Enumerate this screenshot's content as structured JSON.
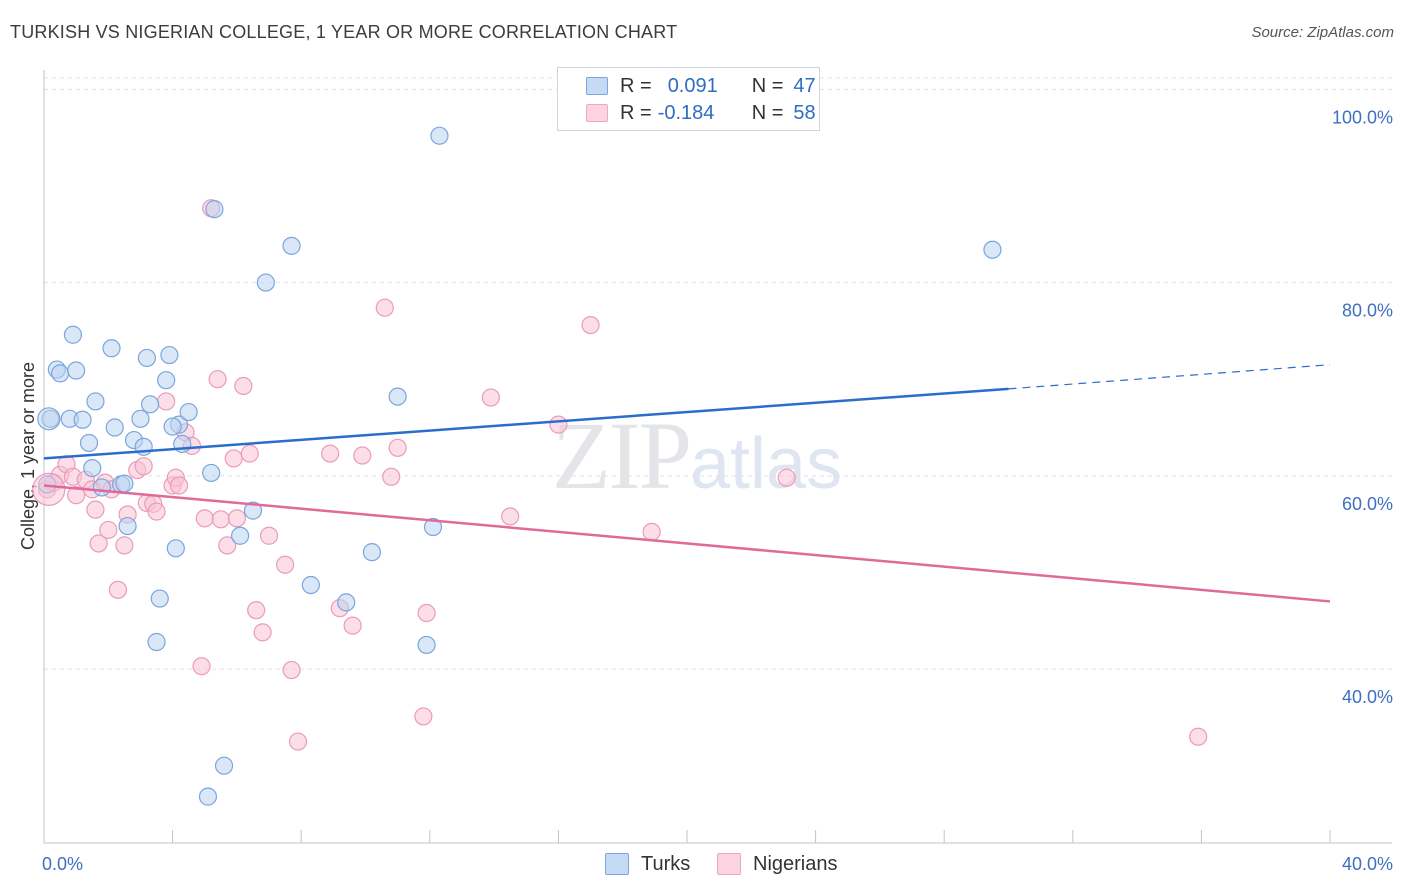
{
  "header": {
    "title": "TURKISH VS NIGERIAN COLLEGE, 1 YEAR OR MORE CORRELATION CHART",
    "source": "Source: ZipAtlas.com"
  },
  "watermark": {
    "zip": "ZIP",
    "atlas": "atlas"
  },
  "legend": {
    "r_label": "R =",
    "n_label": "N =",
    "rows": [
      {
        "r": "0.091",
        "n": "47"
      },
      {
        "r": "-0.184",
        "n": "58"
      }
    ]
  },
  "bottom_legend": [
    "Turks",
    "Nigerians"
  ],
  "chart_data": {
    "type": "scatter",
    "title": "TURKISH VS NIGERIAN COLLEGE, 1 YEAR OR MORE CORRELATION CHART",
    "xlabel": "",
    "ylabel": "College, 1 year or more",
    "xlim": [
      0,
      40
    ],
    "ylim": [
      22,
      102
    ],
    "x_tick_labels": [
      "0.0%",
      "40.0%"
    ],
    "y_ticks": [
      40,
      60,
      80,
      100
    ],
    "y_tick_labels": [
      "40.0%",
      "60.0%",
      "80.0%",
      "100.0%"
    ],
    "colors": {
      "turks": "#7aa6dd",
      "nigerians": "#f0a8c1",
      "turks_line": "#2b6dcc",
      "nigerians_line": "#e06a9a",
      "tick": "#3f6fc1"
    },
    "series": [
      {
        "name": "Turks",
        "R": 0.091,
        "N": 47,
        "trend": {
          "x": [
            0,
            30.0
          ],
          "y": [
            61.8,
            69.0
          ],
          "dashed_extension": {
            "x": [
              30.0,
              40
            ],
            "y": [
              69.0,
              71.5
            ]
          }
        },
        "points": [
          [
            0.2,
            65.9
          ],
          [
            0.4,
            71.0
          ],
          [
            0.5,
            70.6
          ],
          [
            0.8,
            65.9
          ],
          [
            0.9,
            74.6
          ],
          [
            1.0,
            70.9
          ],
          [
            1.2,
            65.8
          ],
          [
            1.4,
            63.4
          ],
          [
            1.5,
            60.8
          ],
          [
            1.6,
            67.7
          ],
          [
            1.8,
            58.8
          ],
          [
            2.1,
            73.2
          ],
          [
            2.2,
            65.0
          ],
          [
            2.4,
            59.1
          ],
          [
            2.6,
            54.8
          ],
          [
            2.8,
            63.7
          ],
          [
            3.0,
            65.9
          ],
          [
            3.1,
            63.0
          ],
          [
            3.2,
            72.2
          ],
          [
            3.3,
            67.4
          ],
          [
            3.5,
            42.8
          ],
          [
            3.6,
            47.3
          ],
          [
            3.8,
            69.9
          ],
          [
            3.9,
            72.5
          ],
          [
            4.1,
            52.5
          ],
          [
            4.2,
            65.3
          ],
          [
            4.3,
            63.3
          ],
          [
            4.5,
            66.6
          ],
          [
            5.2,
            60.3
          ],
          [
            5.3,
            87.6
          ],
          [
            5.6,
            30.0
          ],
          [
            5.1,
            26.8
          ],
          [
            6.1,
            53.8
          ],
          [
            6.5,
            56.4
          ],
          [
            6.9,
            80.0
          ],
          [
            7.7,
            83.8
          ],
          [
            8.3,
            48.7
          ],
          [
            9.4,
            46.9
          ],
          [
            10.2,
            52.1
          ],
          [
            11.0,
            68.2
          ],
          [
            11.9,
            42.5
          ],
          [
            12.1,
            54.7
          ],
          [
            12.3,
            95.2
          ],
          [
            29.5,
            83.4
          ],
          [
            0.1,
            59.1
          ],
          [
            2.5,
            59.2
          ],
          [
            4.0,
            65.1
          ]
        ]
      },
      {
        "name": "Nigerians",
        "R": -0.184,
        "N": 58,
        "trend": {
          "x": [
            0,
            40
          ],
          "y": [
            59.0,
            47.0
          ]
        },
        "points": [
          [
            0.1,
            58.6
          ],
          [
            0.3,
            59.3
          ],
          [
            0.5,
            60.1
          ],
          [
            0.7,
            61.2
          ],
          [
            0.9,
            59.9
          ],
          [
            1.0,
            58.0
          ],
          [
            1.3,
            59.6
          ],
          [
            1.5,
            58.6
          ],
          [
            1.6,
            56.5
          ],
          [
            1.7,
            53.0
          ],
          [
            1.9,
            59.3
          ],
          [
            2.0,
            54.4
          ],
          [
            2.1,
            58.6
          ],
          [
            2.3,
            48.2
          ],
          [
            2.5,
            52.8
          ],
          [
            2.6,
            56.0
          ],
          [
            2.9,
            60.6
          ],
          [
            3.1,
            61.0
          ],
          [
            3.2,
            57.2
          ],
          [
            3.4,
            57.1
          ],
          [
            3.5,
            56.3
          ],
          [
            3.8,
            67.7
          ],
          [
            4.0,
            59.0
          ],
          [
            4.1,
            59.8
          ],
          [
            4.2,
            59.0
          ],
          [
            4.4,
            64.5
          ],
          [
            4.6,
            63.1
          ],
          [
            4.9,
            40.3
          ],
          [
            5.0,
            55.6
          ],
          [
            5.2,
            87.7
          ],
          [
            5.4,
            70.0
          ],
          [
            5.5,
            55.5
          ],
          [
            5.7,
            52.8
          ],
          [
            5.9,
            61.8
          ],
          [
            6.0,
            55.6
          ],
          [
            6.2,
            69.3
          ],
          [
            6.4,
            62.3
          ],
          [
            6.6,
            46.1
          ],
          [
            6.8,
            43.8
          ],
          [
            7.0,
            53.8
          ],
          [
            7.5,
            50.8
          ],
          [
            7.7,
            39.9
          ],
          [
            7.9,
            32.5
          ],
          [
            8.9,
            62.3
          ],
          [
            9.2,
            46.3
          ],
          [
            9.6,
            44.5
          ],
          [
            9.9,
            62.1
          ],
          [
            10.6,
            77.4
          ],
          [
            10.8,
            59.9
          ],
          [
            11.0,
            62.9
          ],
          [
            11.8,
            35.1
          ],
          [
            11.9,
            45.8
          ],
          [
            13.9,
            68.1
          ],
          [
            14.5,
            55.8
          ],
          [
            16.0,
            65.3
          ],
          [
            17.0,
            75.6
          ],
          [
            18.9,
            54.2
          ],
          [
            23.1,
            59.8
          ]
        ]
      }
    ],
    "extra_point_nigerians_far": [
      35.9,
      33.0
    ]
  }
}
